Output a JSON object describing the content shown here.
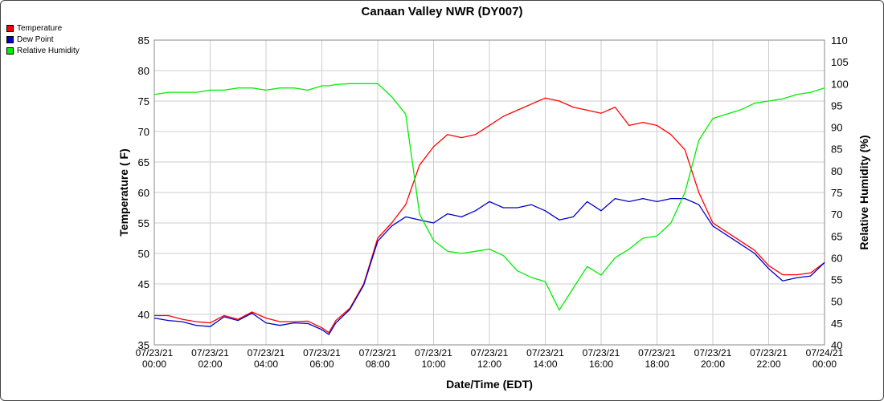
{
  "chart_data": {
    "type": "line",
    "title": "Canaan Valley NWR (DY007)",
    "xlabel": "Date/Time (EDT)",
    "ylabel_left": "Temperature ( F)",
    "ylabel_right": "Relative Humidity (%)",
    "ylim_left": [
      35,
      85
    ],
    "ylim_right": [
      40,
      110
    ],
    "left_ticks": [
      "35",
      "40",
      "45",
      "50",
      "55",
      "60",
      "65",
      "70",
      "75",
      "80",
      "85"
    ],
    "right_ticks": [
      "40",
      "45",
      "50",
      "55",
      "60",
      "65",
      "70",
      "75",
      "80",
      "85",
      "90",
      "95",
      "100",
      "105",
      "110"
    ],
    "x_tick_labels": [
      {
        "date": "07/23/21",
        "time": "00:00"
      },
      {
        "date": "07/23/21",
        "time": "02:00"
      },
      {
        "date": "07/23/21",
        "time": "04:00"
      },
      {
        "date": "07/23/21",
        "time": "06:00"
      },
      {
        "date": "07/23/21",
        "time": "08:00"
      },
      {
        "date": "07/23/21",
        "time": "10:00"
      },
      {
        "date": "07/23/21",
        "time": "12:00"
      },
      {
        "date": "07/23/21",
        "time": "14:00"
      },
      {
        "date": "07/23/21",
        "time": "16:00"
      },
      {
        "date": "07/23/21",
        "time": "18:00"
      },
      {
        "date": "07/23/21",
        "time": "20:00"
      },
      {
        "date": "07/23/21",
        "time": "22:00"
      },
      {
        "date": "07/24/21",
        "time": "00:00"
      }
    ],
    "x_hours": [
      0,
      0.5,
      1,
      1.5,
      2,
      2.5,
      3,
      3.5,
      4,
      4.5,
      5,
      5.5,
      6,
      6.25,
      6.5,
      7,
      7.5,
      8,
      8.5,
      9,
      9.5,
      10,
      10.5,
      11,
      11.5,
      12,
      12.5,
      13,
      13.5,
      14,
      14.5,
      15,
      15.5,
      16,
      16.5,
      17,
      17.5,
      18,
      18.5,
      19,
      19.5,
      20,
      20.5,
      21,
      21.5,
      22,
      22.5,
      23,
      23.5,
      24
    ],
    "grid": true,
    "legend_position": "top-left",
    "series": [
      {
        "name": "Temperature",
        "axis": "left",
        "color": "#ff0000",
        "values": [
          39.8,
          39.8,
          39.2,
          38.8,
          38.6,
          39.8,
          39.2,
          40.4,
          39.4,
          38.8,
          38.8,
          38.9,
          37.8,
          37.0,
          39.0,
          41.0,
          45.0,
          52.5,
          55.0,
          58.0,
          64.5,
          67.5,
          69.5,
          69.0,
          69.5,
          71.0,
          72.5,
          73.5,
          74.5,
          75.5,
          75.0,
          74.0,
          73.5,
          73.0,
          74.0,
          71.0,
          71.5,
          71.0,
          69.5,
          67.0,
          60.0,
          55.0,
          53.5,
          52.0,
          50.5,
          48.0,
          46.5,
          46.5,
          46.8,
          48.5
        ]
      },
      {
        "name": "Dew Point",
        "axis": "left",
        "color": "#0000cc",
        "values": [
          39.4,
          39.0,
          38.8,
          38.2,
          38.0,
          39.6,
          39.0,
          40.2,
          38.6,
          38.2,
          38.6,
          38.5,
          37.5,
          36.7,
          38.6,
          40.8,
          44.8,
          52.0,
          54.5,
          56.0,
          55.5,
          55.0,
          56.5,
          56.0,
          57.0,
          58.5,
          57.5,
          57.5,
          58.0,
          57.0,
          55.5,
          56.0,
          58.5,
          57.0,
          59.0,
          58.5,
          59.0,
          58.5,
          59.0,
          59.0,
          58.0,
          54.5,
          53.0,
          51.5,
          50.0,
          47.5,
          45.5,
          46.0,
          46.3,
          48.5
        ]
      },
      {
        "name": "Relative Humidity",
        "axis": "right",
        "color": "#00ee00",
        "values": [
          97.5,
          98.0,
          98.0,
          98.0,
          98.5,
          98.5,
          99.0,
          99.0,
          98.5,
          99.0,
          99.0,
          98.5,
          99.5,
          99.5,
          99.8,
          100.0,
          100.0,
          100.0,
          97.0,
          93.0,
          70.0,
          64.0,
          61.5,
          61.0,
          61.5,
          62.0,
          60.5,
          57.0,
          55.5,
          54.5,
          48.0,
          53.0,
          58.0,
          56.0,
          60.0,
          62.0,
          64.5,
          65.0,
          68.0,
          75.0,
          87.0,
          92.0,
          93.0,
          94.0,
          95.5,
          96.0,
          96.5,
          97.5,
          98.0,
          99.0
        ]
      }
    ]
  }
}
